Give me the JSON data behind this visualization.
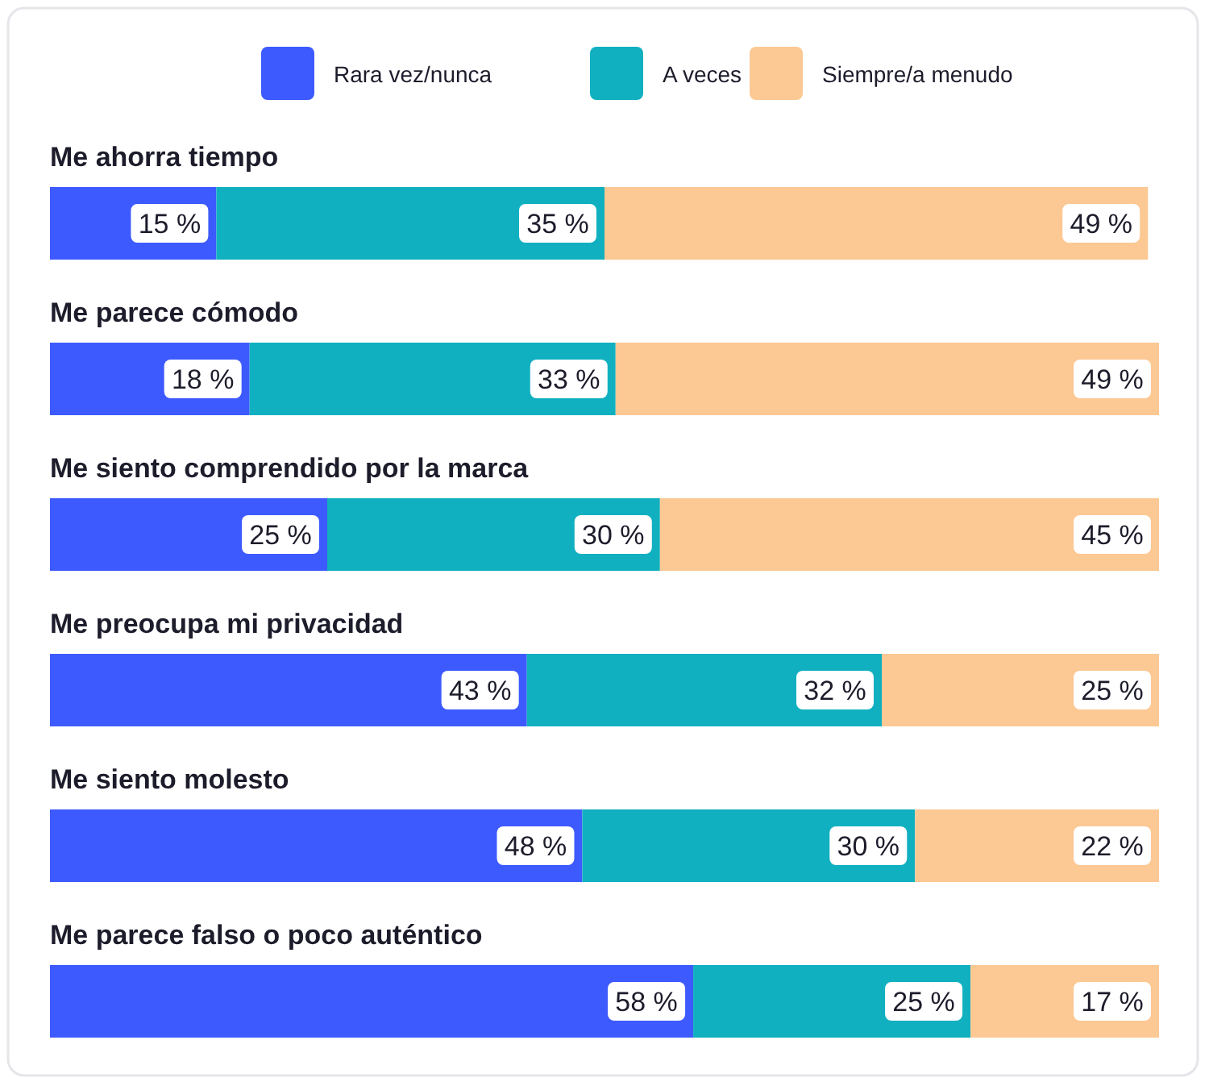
{
  "chart_data": {
    "type": "bar",
    "orientation": "horizontal",
    "stacked": true,
    "legend": "top",
    "categories": [
      "Me ahorra tiempo",
      "Me parece cómodo",
      "Me siento comprendido por la marca",
      "Me preocupa mi privacidad",
      "Me siento molesto",
      "Me parece falso o poco auténtico"
    ],
    "series": [
      {
        "name": "Rara vez/nunca",
        "color": "#3d5afe",
        "values": [
          15,
          18,
          25,
          43,
          48,
          58
        ],
        "value_labels": [
          "15 %",
          "18 %",
          "25 %",
          "43 %",
          "48 %",
          "58 %"
        ]
      },
      {
        "name": "A veces",
        "color": "#10b0c0",
        "values": [
          35,
          33,
          30,
          32,
          30,
          25
        ],
        "value_labels": [
          "35 %",
          "33 %",
          "30 %",
          "32 %",
          "30 %",
          "25 %"
        ]
      },
      {
        "name": "Siempre/a menudo",
        "color": "#fcc893",
        "values": [
          49,
          49,
          45,
          25,
          22,
          17
        ],
        "value_labels": [
          "49 %",
          "49 %",
          "45 %",
          "25 %",
          "22 %",
          "17 %"
        ]
      }
    ]
  }
}
